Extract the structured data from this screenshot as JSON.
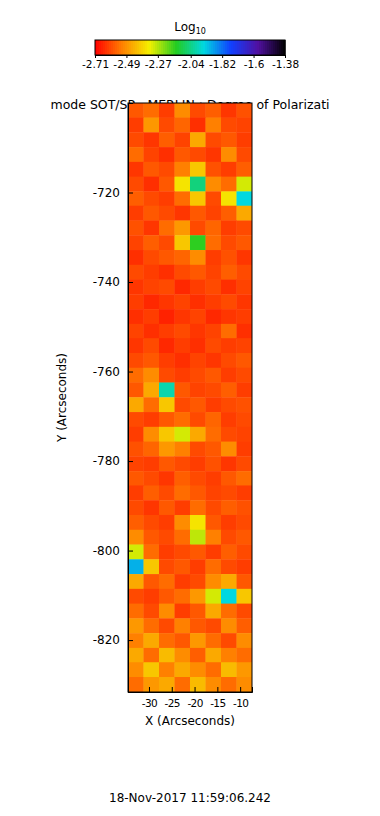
{
  "chart_data": {
    "type": "heatmap",
    "title": "mode SOT/SP - MERLIN : Degree of Polarizati",
    "x_label": "X (Arcseconds)",
    "y_label": "Y (Arcseconds)",
    "date": "18-Nov-2017 11:59:06.242",
    "xlim": [
      -34.6,
      -7.4
    ],
    "ylim": [
      -831.6,
      -700
    ],
    "xticks": [
      -30,
      -25,
      -20,
      -15,
      -10
    ],
    "yticks": [
      -820,
      -800,
      -780,
      -760,
      -740,
      -720
    ],
    "colorbar": {
      "title": "Log10",
      "range": [
        -2.71,
        -1.38
      ],
      "ticks": [
        -2.71,
        -2.49,
        -2.27,
        -2.04,
        -1.82,
        -1.6,
        -1.38
      ]
    },
    "x": [
      -32.9,
      -29.5,
      -26.1,
      -22.7,
      -19.3,
      -15.9,
      -12.5,
      -9.1
    ],
    "y": [
      -701.6,
      -704.9,
      -708.2,
      -711.5,
      -714.8,
      -718.1,
      -721.4,
      -724.6,
      -727.9,
      -731.2,
      -734.5,
      -737.8,
      -741.1,
      -744.4,
      -747.7,
      -751.0,
      -754.2,
      -757.5,
      -760.8,
      -764.1,
      -767.4,
      -770.7,
      -774.0,
      -777.3,
      -780.6,
      -783.9,
      -787.1,
      -790.4,
      -793.7,
      -797.0,
      -800.3,
      -803.6,
      -806.9,
      -810.2,
      -813.5,
      -816.8,
      -820.1,
      -823.4,
      -826.6,
      -829.9
    ],
    "z": [
      [
        -2.58,
        -2.55,
        -2.62,
        -2.5,
        -2.6,
        -2.57,
        -2.63,
        -2.59
      ],
      [
        -2.62,
        -2.48,
        -2.6,
        -2.56,
        -2.64,
        -2.52,
        -2.6,
        -2.61
      ],
      [
        -2.6,
        -2.63,
        -2.57,
        -2.61,
        -2.45,
        -2.6,
        -2.58,
        -2.62
      ],
      [
        -2.55,
        -2.61,
        -2.64,
        -2.58,
        -2.6,
        -2.63,
        -2.5,
        -2.6
      ],
      [
        -2.63,
        -2.58,
        -2.6,
        -2.52,
        -2.4,
        -2.59,
        -2.62,
        -2.57
      ],
      [
        -2.6,
        -2.64,
        -2.58,
        -2.35,
        -2.05,
        -2.5,
        -2.55,
        -2.3
      ],
      [
        -2.57,
        -2.6,
        -2.62,
        -2.55,
        -2.4,
        -2.6,
        -2.35,
        -1.95
      ],
      [
        -2.62,
        -2.58,
        -2.6,
        -2.63,
        -2.58,
        -2.61,
        -2.57,
        -2.45
      ],
      [
        -2.59,
        -2.63,
        -2.55,
        -2.48,
        -2.6,
        -2.56,
        -2.62,
        -2.6
      ],
      [
        -2.61,
        -2.57,
        -2.6,
        -2.4,
        -2.15,
        -2.55,
        -2.6,
        -2.58
      ],
      [
        -2.64,
        -2.6,
        -2.58,
        -2.56,
        -2.5,
        -2.62,
        -2.59,
        -2.63
      ],
      [
        -2.6,
        -2.62,
        -2.64,
        -2.6,
        -2.58,
        -2.61,
        -2.57,
        -2.6
      ],
      [
        -2.63,
        -2.61,
        -2.6,
        -2.65,
        -2.62,
        -2.6,
        -2.64,
        -2.61
      ],
      [
        -2.62,
        -2.65,
        -2.63,
        -2.61,
        -2.64,
        -2.62,
        -2.6,
        -2.63
      ],
      [
        -2.64,
        -2.62,
        -2.66,
        -2.63,
        -2.61,
        -2.65,
        -2.63,
        -2.62
      ],
      [
        -2.61,
        -2.64,
        -2.62,
        -2.6,
        -2.63,
        -2.61,
        -2.55,
        -2.64
      ],
      [
        -2.63,
        -2.6,
        -2.65,
        -2.62,
        -2.64,
        -2.6,
        -2.62,
        -2.61
      ],
      [
        -2.6,
        -2.58,
        -2.62,
        -2.64,
        -2.61,
        -2.63,
        -2.6,
        -2.58
      ],
      [
        -2.55,
        -2.5,
        -2.6,
        -2.62,
        -2.6,
        -2.58,
        -2.62,
        -2.6
      ],
      [
        -2.58,
        -2.45,
        -2.0,
        -2.58,
        -2.61,
        -2.6,
        -2.57,
        -2.62
      ],
      [
        -2.45,
        -2.55,
        -2.4,
        -2.6,
        -2.58,
        -2.62,
        -2.6,
        -2.59
      ],
      [
        -2.6,
        -2.62,
        -2.58,
        -2.55,
        -2.6,
        -2.56,
        -2.62,
        -2.6
      ],
      [
        -2.62,
        -2.5,
        -2.4,
        -2.3,
        -2.45,
        -2.55,
        -2.6,
        -2.61
      ],
      [
        -2.59,
        -2.56,
        -2.48,
        -2.52,
        -2.6,
        -2.58,
        -2.5,
        -2.62
      ],
      [
        -2.61,
        -2.62,
        -2.58,
        -2.6,
        -2.62,
        -2.59,
        -2.63,
        -2.6
      ],
      [
        -2.58,
        -2.6,
        -2.63,
        -2.57,
        -2.6,
        -2.62,
        -2.58,
        -2.55
      ],
      [
        -2.62,
        -2.57,
        -2.6,
        -2.55,
        -2.58,
        -2.61,
        -2.6,
        -2.62
      ],
      [
        -2.6,
        -2.63,
        -2.58,
        -2.62,
        -2.55,
        -2.6,
        -2.57,
        -2.59
      ],
      [
        -2.57,
        -2.6,
        -2.62,
        -2.5,
        -2.35,
        -2.58,
        -2.62,
        -2.6
      ],
      [
        -2.5,
        -2.58,
        -2.6,
        -2.55,
        -2.28,
        -2.52,
        -2.6,
        -2.58
      ],
      [
        -2.3,
        -2.55,
        -2.62,
        -2.6,
        -2.58,
        -2.62,
        -2.57,
        -2.6
      ],
      [
        -1.9,
        -2.4,
        -2.6,
        -2.58,
        -2.62,
        -2.55,
        -2.6,
        -2.62
      ],
      [
        -2.45,
        -2.58,
        -2.55,
        -2.62,
        -2.6,
        -2.5,
        -2.45,
        -2.58
      ],
      [
        -2.6,
        -2.62,
        -2.58,
        -2.55,
        -2.48,
        -2.3,
        -1.95,
        -2.4
      ],
      [
        -2.55,
        -2.6,
        -2.5,
        -2.62,
        -2.58,
        -2.45,
        -2.55,
        -2.6
      ],
      [
        -2.48,
        -2.55,
        -2.6,
        -2.52,
        -2.58,
        -2.6,
        -2.5,
        -2.57
      ],
      [
        -2.52,
        -2.45,
        -2.55,
        -2.58,
        -2.48,
        -2.55,
        -2.6,
        -2.5
      ],
      [
        -2.45,
        -2.55,
        -2.42,
        -2.5,
        -2.57,
        -2.45,
        -2.52,
        -2.55
      ],
      [
        -2.5,
        -2.4,
        -2.52,
        -2.45,
        -2.5,
        -2.55,
        -2.42,
        -2.48
      ],
      [
        -2.55,
        -2.48,
        -2.45,
        -2.55,
        -2.42,
        -2.5,
        -2.55,
        -2.5
      ]
    ]
  }
}
